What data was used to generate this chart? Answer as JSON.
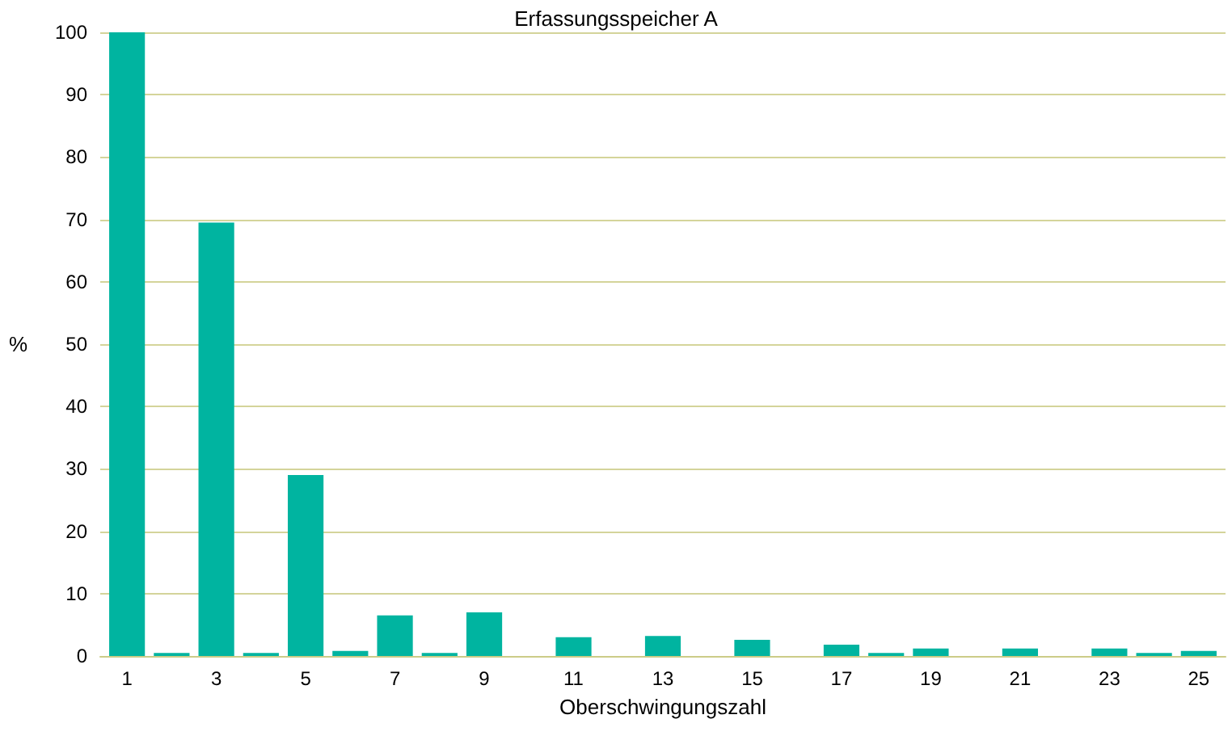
{
  "chart_data": {
    "type": "bar",
    "title": "Erfassungsspeicher A",
    "xlabel": "Oberschwingungszahl",
    "ylabel": "%",
    "x": [
      1,
      2,
      3,
      4,
      5,
      6,
      7,
      8,
      9,
      10,
      11,
      12,
      13,
      14,
      15,
      16,
      17,
      18,
      19,
      20,
      21,
      22,
      23,
      24,
      25
    ],
    "values": [
      100,
      0.5,
      69.5,
      0.5,
      29,
      0.8,
      6.5,
      0.5,
      7,
      0,
      3,
      0,
      3.2,
      0,
      2.6,
      0,
      1.8,
      0.5,
      1.2,
      0,
      1.2,
      0,
      1.2,
      0.5,
      0.8
    ],
    "color": "#00b4a0",
    "xlim": [
      0.4,
      25.6
    ],
    "xticks": [
      1,
      3,
      5,
      7,
      9,
      11,
      13,
      15,
      17,
      19,
      21,
      23,
      25
    ],
    "ylim": [
      0,
      100
    ],
    "yticks": [
      0,
      10,
      20,
      30,
      40,
      50,
      60,
      70,
      80,
      90,
      100
    ],
    "grid": "y"
  }
}
